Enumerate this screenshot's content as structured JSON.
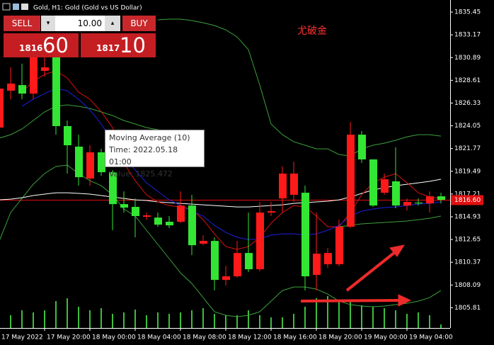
{
  "window": {
    "title": "Gold, H1:  Gold (Gold vs US Dollar)"
  },
  "trade_panel": {
    "sell": "SELL",
    "buy": "BUY",
    "lot": "10.00",
    "bid_small": "1816",
    "bid_big": "60",
    "ask_small": "1817",
    "ask_big": "10"
  },
  "chart_data": {
    "type": "candlestick",
    "annotation": "尤破金",
    "tooltip": {
      "lines": [
        "Moving Average (10)",
        "Time: 2022.05.18 01:00",
        "Value: 1825.472"
      ]
    },
    "categories": [
      "17 May 2022",
      null,
      null,
      null,
      "17 May 20:00",
      null,
      null,
      null,
      "18 May 00:00",
      null,
      null,
      null,
      "18 May 04:00",
      null,
      null,
      null,
      "18 May 08:00",
      null,
      null,
      null,
      "18 May 12:00",
      null,
      null,
      null,
      "18 May 16:00",
      null,
      null,
      null,
      "18 May 20:00",
      null,
      null,
      null,
      "19 May 00:00",
      null,
      null,
      null,
      "19 May 04:00",
      null,
      null,
      null
    ],
    "open": [
      1823.87,
      1827.57,
      1828.13,
      1827.28,
      1829.56,
      1830.98,
      1824.02,
      1821.96,
      1818.76,
      1821.39,
      1819.4,
      1816.2,
      1815.92,
      1814.93,
      1814.85,
      1814.43,
      1814.43,
      1816.06,
      1812.23,
      1812.51,
      1808.6,
      1808.96,
      1811.3,
      1809.67,
      1815.35,
      1816.77,
      1817.13,
      1817.34,
      1809.1,
      1810.17,
      1810.17,
      1813.93,
      1823.16,
      1820.68,
      1817.34,
      1818.48,
      1816.06,
      1816.35,
      1816.27,
      1816.98
    ],
    "high": [
      1829.56,
      1829.91,
      1830.27,
      1832.04,
      1831.69,
      1831.69,
      1824.58,
      1823.16,
      1822.1,
      1821.74,
      1819.61,
      1817.48,
      1816.77,
      1815.35,
      1815.35,
      1815.0,
      1817.48,
      1817.13,
      1813.08,
      1812.87,
      1810.02,
      1812.51,
      1815.35,
      1816.42,
      1816.42,
      1819.97,
      1820.46,
      1818.05,
      1815.35,
      1811.8,
      1814.64,
      1824.44,
      1823.52,
      1820.68,
      1819.26,
      1821.89,
      1816.77,
      1816.77,
      1817.48,
      1817.34
    ],
    "low": [
      1823.52,
      1826.71,
      1826.71,
      1826.71,
      1828.99,
      1823.16,
      1819.26,
      1818.05,
      1818.05,
      1819.04,
      1813.58,
      1815.35,
      1812.87,
      1814.64,
      1813.93,
      1813.79,
      1814.29,
      1811.09,
      1812.08,
      1807.54,
      1808.04,
      1808.82,
      1809.39,
      1809.46,
      1815.0,
      1815.35,
      1816.42,
      1807.54,
      1807.54,
      1809.81,
      1809.95,
      1813.79,
      1820.32,
      1815.92,
      1817.13,
      1815.78,
      1815.56,
      1816.06,
      1815.35,
      1816.27
    ],
    "close": [
      1827.78,
      1828.28,
      1827.28,
      1830.98,
      1829.91,
      1824.02,
      1822.1,
      1818.9,
      1821.39,
      1819.4,
      1816.2,
      1815.85,
      1815.0,
      1815.07,
      1814.14,
      1814.07,
      1816.06,
      1812.08,
      1812.51,
      1808.6,
      1808.96,
      1811.3,
      1809.67,
      1815.35,
      1815.49,
      1819.26,
      1819.26,
      1808.96,
      1811.23,
      1811.3,
      1813.93,
      1823.16,
      1820.68,
      1816.06,
      1818.69,
      1816.06,
      1816.42,
      1816.27,
      1816.98,
      1816.63
    ],
    "up_color": "#ff1a1a",
    "down_color": "#33e633",
    "series": [
      {
        "color": "#3ca03c",
        "values": [
          null,
          null,
          null,
          null,
          null,
          null,
          null,
          null,
          null,
          null,
          null,
          null,
          null,
          null,
          1834.67,
          1834.74,
          1834.74,
          1834.6,
          1834.38,
          1834.1,
          1833.67,
          1832.96,
          1831.69,
          1828.13,
          1824.23,
          1823.16,
          1822.45,
          1822.1,
          1821.74,
          1821.74,
          1821.17,
          1821.03,
          1821.74,
          1822.1,
          1822.31,
          1822.6,
          1822.95,
          1823.16,
          1823.16,
          1823.02
        ]
      },
      {
        "color": "#3ca03c",
        "values": [
          1812.51,
          1815.35,
          1816.77,
          1818.19,
          1819.26,
          1819.97,
          1820.11,
          1819.26,
          1818.55,
          1818.05,
          1817.13,
          1815.71,
          1815.0,
          1813.58,
          1812.16,
          1810.74,
          1809.31,
          1808.25,
          1806.83,
          1805.41,
          1805.05,
          1804.91,
          1805.05,
          1805.41,
          1806.47,
          1807.54,
          1807.89,
          1807.89,
          1807.68,
          1807.18,
          1806.47,
          1806.12,
          1805.98,
          1805.91,
          1805.98,
          1806.12,
          1806.26,
          1806.47,
          1806.83,
          1807.54
        ]
      },
      {
        "color": "#3ca03c",
        "values": [
          1822.81,
          1823.16,
          1823.73,
          1824.58,
          1825.44,
          1826.0,
          1826.15,
          1826.0,
          1825.79,
          1825.44,
          1825.08,
          1824.58,
          1824.23,
          1823.87,
          1823.66,
          1823.52,
          1823.16,
          null,
          null,
          null,
          null,
          null,
          null,
          null,
          null,
          null,
          null,
          null,
          null,
          null,
          1813.93,
          1814.07,
          1814.22,
          1814.29,
          1814.36,
          1814.43,
          1814.5,
          1814.64,
          1814.78,
          1815.0
        ]
      },
      {
        "color": "#ffffff",
        "values": [
          1816.63,
          1816.7,
          1816.84,
          1817.06,
          1817.2,
          1817.34,
          1817.34,
          1817.27,
          1817.2,
          1817.06,
          1816.91,
          1816.77,
          1816.63,
          1816.56,
          1816.42,
          1816.35,
          1816.27,
          1816.2,
          1816.13,
          1816.06,
          1815.99,
          1815.92,
          1815.92,
          1815.99,
          1816.06,
          1816.13,
          1816.27,
          1816.35,
          1816.42,
          1816.49,
          1816.63,
          1816.91,
          1817.27,
          1817.62,
          1817.84,
          1818.05,
          1818.19,
          1818.33,
          1818.48,
          1818.69
        ]
      },
      {
        "color": "#e01010",
        "values": [
          null,
          null,
          1827.42,
          1828.49,
          1829.2,
          1829.56,
          1828.85,
          1827.42,
          1826.71,
          1825.47,
          1823.87,
          1820.32,
          1818.55,
          1817.13,
          1816.42,
          1816.06,
          1815.92,
          1815.71,
          1814.64,
          1813.22,
          1811.94,
          1811.66,
          1811.94,
          1812.87,
          1814.29,
          1815.35,
          1816.06,
          1815.92,
          1815.0,
          1813.93,
          1813.93,
          1815.35,
          1817.13,
          1818.33,
          1818.9,
          1819.26,
          1818.33,
          1817.34,
          1816.91,
          1816.77
        ]
      },
      {
        "color": "#2020e0",
        "values": [
          null,
          null,
          1826.0,
          1826.71,
          1827.28,
          1827.78,
          1827.57,
          1826.71,
          1825.65,
          1824.23,
          1822.45,
          1820.89,
          1819.61,
          1818.33,
          1817.48,
          1816.63,
          1816.06,
          1815.49,
          1815.0,
          1814.07,
          1813.36,
          1812.87,
          1812.65,
          1812.72,
          1813.08,
          1813.22,
          1813.22,
          1813.08,
          1813.22,
          1813.58,
          1814.07,
          1815.0,
          1815.49,
          1815.71,
          1815.85,
          1815.92,
          1816.06,
          1816.2,
          1816.27,
          1816.42
        ]
      }
    ],
    "volume": {
      "color": "#3cbe3c",
      "ylim": [
        0,
        100
      ],
      "values": [
        10,
        18,
        25,
        22,
        25,
        38,
        42,
        30,
        25,
        28,
        20,
        22,
        26,
        18,
        22,
        20,
        22,
        25,
        28,
        20,
        18,
        18,
        25,
        18,
        15,
        15,
        20,
        30,
        42,
        45,
        40,
        38,
        32,
        30,
        28,
        25,
        20,
        22,
        18,
        5
      ]
    },
    "current_price": {
      "value": 1816.6,
      "label": "1816.60",
      "color": "#e01010"
    },
    "ylim": [
      1803.78,
      1836.66
    ],
    "yticks": [
      1835.45,
      1833.17,
      1830.89,
      1828.61,
      1826.33,
      1824.05,
      1821.77,
      1819.49,
      1817.21,
      1814.93,
      1812.65,
      1810.37,
      1808.09,
      1805.81
    ]
  }
}
